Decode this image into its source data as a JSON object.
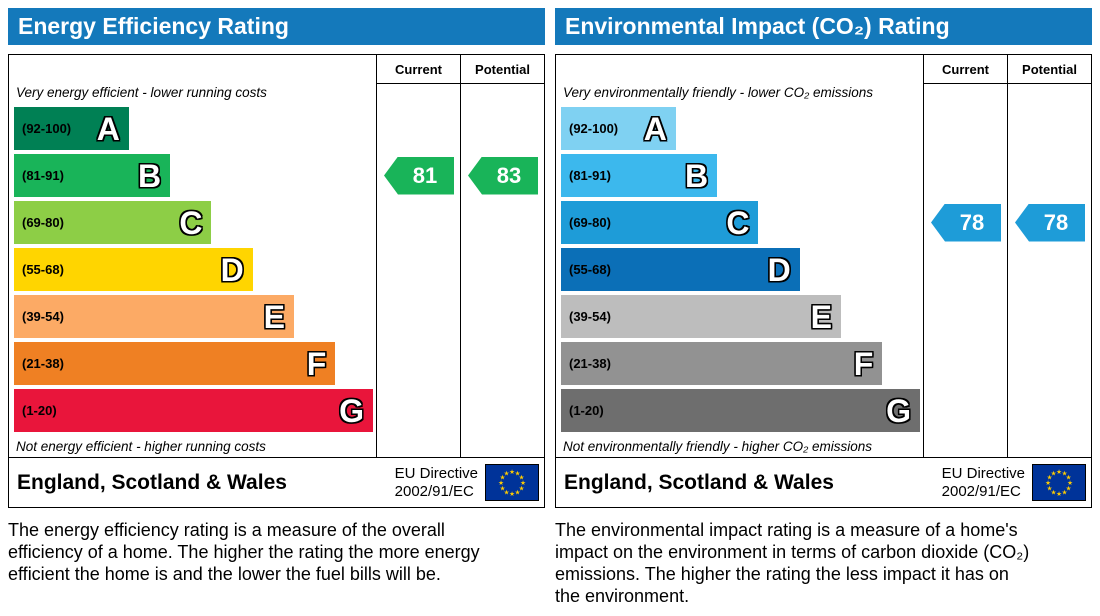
{
  "panels": [
    {
      "title": "Energy Efficiency Rating",
      "header_bg": "#1479bb",
      "top_note": "Very energy efficient - lower running costs",
      "bottom_note": "Not energy efficient - higher running costs",
      "bands": [
        {
          "range": "(92-100)",
          "letter": "A",
          "color": "#008054",
          "width_pct": 32
        },
        {
          "range": "(81-91)",
          "letter": "B",
          "color": "#19b459",
          "width_pct": 43.5
        },
        {
          "range": "(69-80)",
          "letter": "C",
          "color": "#8dce46",
          "width_pct": 55
        },
        {
          "range": "(55-68)",
          "letter": "D",
          "color": "#ffd500",
          "width_pct": 66.5
        },
        {
          "range": "(39-54)",
          "letter": "E",
          "color": "#fcaa65",
          "width_pct": 78
        },
        {
          "range": "(21-38)",
          "letter": "F",
          "color": "#ef8023",
          "width_pct": 89.5
        },
        {
          "range": "(1-20)",
          "letter": "G",
          "color": "#e9153b",
          "width_pct": 100
        }
      ],
      "current": {
        "label": "Current",
        "value": "81",
        "band_index": 1,
        "color": "#19b459"
      },
      "potential": {
        "label": "Potential",
        "value": "83",
        "band_index": 1,
        "color": "#19b459"
      },
      "region": "England, Scotland & Wales",
      "directive_line1": "EU Directive",
      "directive_line2": "2002/91/EC",
      "description": "The energy efficiency rating is a measure of the overall efficiency of a home. The higher the rating the more energy efficient the home is and the lower the fuel bills will be."
    },
    {
      "title": "Environmental Impact (CO₂) Rating",
      "header_bg": "#1479bb",
      "top_note": "Very environmentally friendly - lower CO₂ emissions",
      "bottom_note": "Not environmentally friendly - higher CO₂ emissions",
      "bands": [
        {
          "range": "(92-100)",
          "letter": "A",
          "color": "#7fd1f2",
          "width_pct": 32
        },
        {
          "range": "(81-91)",
          "letter": "B",
          "color": "#3cb8ed",
          "width_pct": 43.5
        },
        {
          "range": "(69-80)",
          "letter": "C",
          "color": "#1e9cd8",
          "width_pct": 55
        },
        {
          "range": "(55-68)",
          "letter": "D",
          "color": "#0b6fb7",
          "width_pct": 66.5
        },
        {
          "range": "(39-54)",
          "letter": "E",
          "color": "#bdbdbd",
          "width_pct": 78
        },
        {
          "range": "(21-38)",
          "letter": "F",
          "color": "#929292",
          "width_pct": 89.5
        },
        {
          "range": "(1-20)",
          "letter": "G",
          "color": "#6e6e6e",
          "width_pct": 100
        }
      ],
      "current": {
        "label": "Current",
        "value": "78",
        "band_index": 2,
        "color": "#1e9cd8"
      },
      "potential": {
        "label": "Potential",
        "value": "78",
        "band_index": 2,
        "color": "#1e9cd8"
      },
      "region": "England, Scotland & Wales",
      "directive_line1": "EU Directive",
      "directive_line2": "2002/91/EC",
      "description": "The environmental impact rating is a measure of a home's impact on the environment in terms of carbon dioxide (CO₂) emissions. The higher the rating the less impact it has on the environment."
    }
  ],
  "chart_data": [
    {
      "type": "bar",
      "title": "Energy Efficiency Rating",
      "categories": [
        "A (92-100)",
        "B (81-91)",
        "C (69-80)",
        "D (55-68)",
        "E (39-54)",
        "F (21-38)",
        "G (1-20)"
      ],
      "series": [
        {
          "name": "Current",
          "values": [
            81
          ],
          "band": "B"
        },
        {
          "name": "Potential",
          "values": [
            83
          ],
          "band": "B"
        }
      ],
      "scale": [
        1,
        100
      ],
      "legend_position": "none",
      "annotations": [
        "Very energy efficient - lower running costs",
        "Not energy efficient - higher running costs",
        "England, Scotland & Wales",
        "EU Directive 2002/91/EC"
      ]
    },
    {
      "type": "bar",
      "title": "Environmental Impact (CO₂) Rating",
      "categories": [
        "A (92-100)",
        "B (81-91)",
        "C (69-80)",
        "D (55-68)",
        "E (39-54)",
        "F (21-38)",
        "G (1-20)"
      ],
      "series": [
        {
          "name": "Current",
          "values": [
            78
          ],
          "band": "C"
        },
        {
          "name": "Potential",
          "values": [
            78
          ],
          "band": "C"
        }
      ],
      "scale": [
        1,
        100
      ],
      "legend_position": "none",
      "annotations": [
        "Very environmentally friendly - lower CO₂ emissions",
        "Not environmentally friendly - higher CO₂ emissions",
        "England, Scotland & Wales",
        "EU Directive 2002/91/EC"
      ]
    }
  ]
}
